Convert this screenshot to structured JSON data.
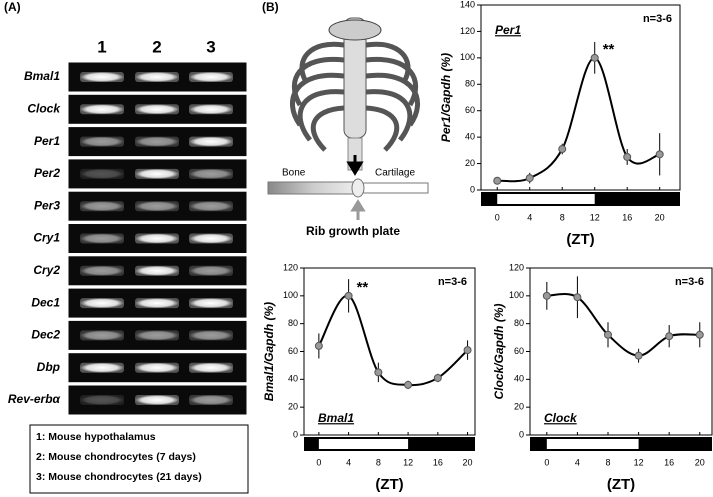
{
  "panel_a": {
    "label": "(A)",
    "lanes": [
      "1",
      "2",
      "3"
    ],
    "genes": [
      "Bmal1",
      "Clock",
      "Per1",
      "Per2",
      "Per3",
      "Cry1",
      "Cry2",
      "Dec1",
      "Dec2",
      "Dbp",
      "Rev-erbα"
    ],
    "legend": [
      "1:  Mouse hypothalamus",
      "2:  Mouse chondrocytes (7 days)",
      "3:  Mouse chondrocytes (21 days)"
    ]
  },
  "panel_b": {
    "label": "(B)",
    "diagram": {
      "bone": "Bone",
      "cartilage": "Cartilage",
      "caption": "Rib growth plate"
    }
  },
  "chart_data": [
    {
      "type": "line",
      "ylabel": "Per1/Gapdh (%)",
      "xlabel": "(ZT)",
      "note": "n=3-6",
      "x": [
        0,
        4,
        8,
        12,
        16,
        20
      ],
      "xlim": [
        -2,
        22.5
      ],
      "xticks": [
        0,
        4,
        8,
        12,
        16,
        20
      ],
      "ylim": [
        0,
        140
      ],
      "yticks": [
        0,
        20,
        40,
        60,
        80,
        100,
        120,
        140
      ],
      "light_period": [
        0,
        12
      ],
      "series": [
        {
          "name": "Per1",
          "color": "#000000",
          "marker_color": "#999999",
          "values": [
            7,
            9,
            31,
            100,
            25,
            27
          ],
          "errors": [
            1,
            4,
            4,
            12,
            6,
            16
          ]
        }
      ],
      "annotations": [
        {
          "text": "**",
          "x": 12
        }
      ]
    },
    {
      "type": "line",
      "ylabel": "Bmal1/Gapdh (%)",
      "xlabel": "(ZT)",
      "note": "n=3-6",
      "x": [
        0,
        4,
        8,
        12,
        16,
        20
      ],
      "xlim": [
        -2,
        21
      ],
      "xticks": [
        0,
        4,
        8,
        12,
        16,
        20
      ],
      "ylim": [
        0,
        120
      ],
      "yticks": [
        0,
        20,
        40,
        60,
        80,
        100,
        120
      ],
      "light_period": [
        0,
        12
      ],
      "series": [
        {
          "name": "Bmal1",
          "color": "#000000",
          "marker_color": "#999999",
          "values": [
            64,
            100,
            45,
            36,
            41,
            61
          ],
          "errors": [
            9,
            12,
            7,
            3,
            3,
            7
          ]
        }
      ],
      "annotations": [
        {
          "text": "**",
          "x": 4
        }
      ]
    },
    {
      "type": "line",
      "ylabel": "Clock/Gapdh (%)",
      "xlabel": "(ZT)",
      "note": "n=3-6",
      "x": [
        0,
        4,
        8,
        12,
        16,
        20
      ],
      "xlim": [
        -2.2,
        21.6
      ],
      "xticks": [
        0,
        4,
        8,
        12,
        16,
        20
      ],
      "ylim": [
        0,
        120
      ],
      "yticks": [
        0,
        20,
        40,
        60,
        80,
        100,
        120
      ],
      "light_period": [
        0,
        12
      ],
      "series": [
        {
          "name": "Clock",
          "color": "#000000",
          "marker_color": "#999999",
          "values": [
            100,
            99,
            72,
            57,
            71,
            72
          ],
          "errors": [
            10,
            15,
            9,
            5,
            8,
            9
          ]
        }
      ],
      "annotations": []
    }
  ]
}
